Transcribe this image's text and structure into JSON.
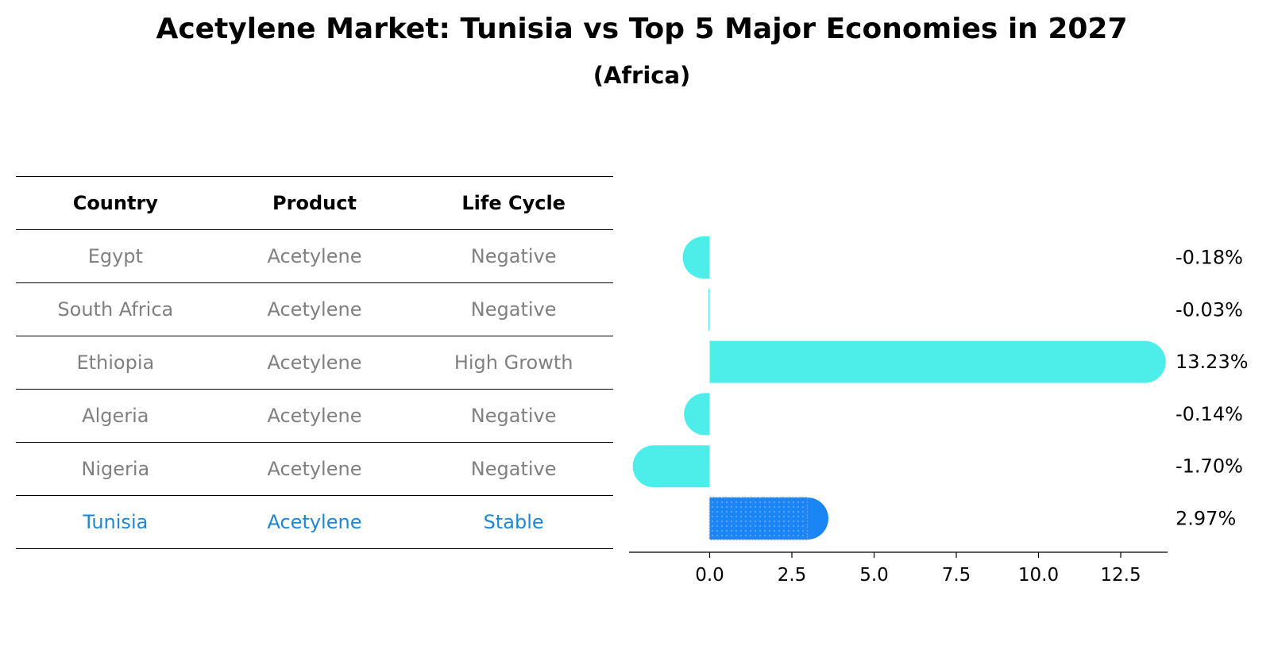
{
  "title": "Acetylene Market: Tunisia vs Top 5 Major Economies in 2027",
  "subtitle": "(Africa)",
  "table": {
    "headers": [
      "Country",
      "Product",
      "Life Cycle"
    ],
    "rows": [
      {
        "country": "Egypt",
        "product": "Acetylene",
        "life_cycle": "Negative"
      },
      {
        "country": "South Africa",
        "product": "Acetylene",
        "life_cycle": "Negative"
      },
      {
        "country": "Ethiopia",
        "product": "Acetylene",
        "life_cycle": "High Growth"
      },
      {
        "country": "Algeria",
        "product": "Acetylene",
        "life_cycle": "Negative"
      },
      {
        "country": "Nigeria",
        "product": "Acetylene",
        "life_cycle": "Negative"
      },
      {
        "country": "Tunisia",
        "product": "Acetylene",
        "life_cycle": "Stable"
      }
    ],
    "highlight_row": 5
  },
  "chart_data": {
    "type": "bar",
    "orientation": "horizontal",
    "categories": [
      "Egypt",
      "South Africa",
      "Ethiopia",
      "Algeria",
      "Nigeria",
      "Tunisia"
    ],
    "values": [
      -0.18,
      -0.03,
      13.23,
      -0.14,
      -1.7,
      2.97
    ],
    "data_labels": [
      "-0.18%",
      "-0.03%",
      "13.23%",
      "-0.14%",
      "-1.70%",
      "2.97%"
    ],
    "xlim": [
      -2.0,
      14.0
    ],
    "xticks": [
      0.0,
      2.5,
      5.0,
      7.5,
      10.0,
      12.5
    ],
    "xtick_labels": [
      "0.0",
      "2.5",
      "5.0",
      "7.5",
      "10.0",
      "12.5"
    ],
    "grid": false,
    "colors": {
      "default": "#4DEEEA",
      "highlight": "#1A85F5"
    },
    "highlight_index": 5
  }
}
